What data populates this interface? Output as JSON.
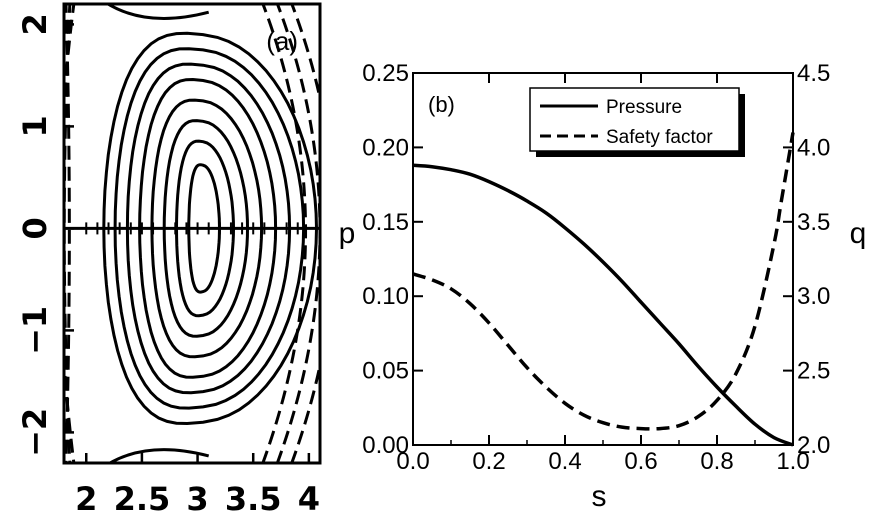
{
  "chart_data": [
    {
      "type": "contour",
      "panel_label": "(a)",
      "x_ticks": [
        "2",
        "2.5",
        "3",
        "3.5",
        "4"
      ],
      "y_ticks": [
        "2",
        "1",
        "0",
        "−1",
        "−2"
      ],
      "xlim": [
        1.8,
        4.1
      ],
      "ylim": [
        -2.3,
        2.2
      ],
      "magnetic_axis": [
        3.05,
        0
      ],
      "closed_surfaces_half_width": [
        0.14,
        0.26,
        0.38,
        0.5,
        0.62,
        0.74,
        0.86,
        0.97
      ],
      "closed_surfaces_half_height": [
        0.62,
        0.85,
        1.05,
        1.25,
        1.45,
        1.6,
        1.75,
        1.9
      ],
      "open_field_lines_dashed": true
    },
    {
      "type": "line",
      "panel_label": "(b)",
      "xlabel": "s",
      "ylabel_left": "p",
      "ylabel_right": "q",
      "xlim": [
        0.0,
        1.0
      ],
      "ylim_left": [
        0.0,
        0.25
      ],
      "ylim_right": [
        2.0,
        4.5
      ],
      "x_ticks": [
        "0.0",
        "0.2",
        "0.4",
        "0.6",
        "0.8",
        "1.0"
      ],
      "y_ticks_left": [
        "0.00",
        "0.05",
        "0.10",
        "0.15",
        "0.20",
        "0.25"
      ],
      "y_ticks_right": [
        "2.0",
        "2.5",
        "3.0",
        "3.5",
        "4.0",
        "4.5"
      ],
      "legend_position": "top-right",
      "series": [
        {
          "name": "Pressure",
          "axis": "left",
          "style": "solid",
          "x": [
            0.0,
            0.05,
            0.1,
            0.15,
            0.2,
            0.25,
            0.3,
            0.35,
            0.4,
            0.45,
            0.5,
            0.55,
            0.6,
            0.65,
            0.7,
            0.75,
            0.8,
            0.85,
            0.9,
            0.95,
            1.0
          ],
          "values": [
            0.188,
            0.187,
            0.185,
            0.182,
            0.177,
            0.171,
            0.164,
            0.156,
            0.146,
            0.135,
            0.123,
            0.11,
            0.096,
            0.082,
            0.068,
            0.053,
            0.039,
            0.026,
            0.014,
            0.005,
            0.0
          ]
        },
        {
          "name": "Safety factor",
          "axis": "right",
          "style": "dashed",
          "x": [
            0.0,
            0.05,
            0.1,
            0.15,
            0.2,
            0.25,
            0.3,
            0.35,
            0.4,
            0.45,
            0.5,
            0.55,
            0.6,
            0.65,
            0.7,
            0.75,
            0.8,
            0.85,
            0.9,
            0.95,
            0.97,
            1.0
          ],
          "values": [
            3.15,
            3.11,
            3.05,
            2.95,
            2.82,
            2.67,
            2.52,
            2.39,
            2.28,
            2.2,
            2.15,
            2.12,
            2.11,
            2.11,
            2.13,
            2.19,
            2.3,
            2.48,
            2.8,
            3.35,
            3.65,
            4.1
          ]
        }
      ]
    }
  ]
}
